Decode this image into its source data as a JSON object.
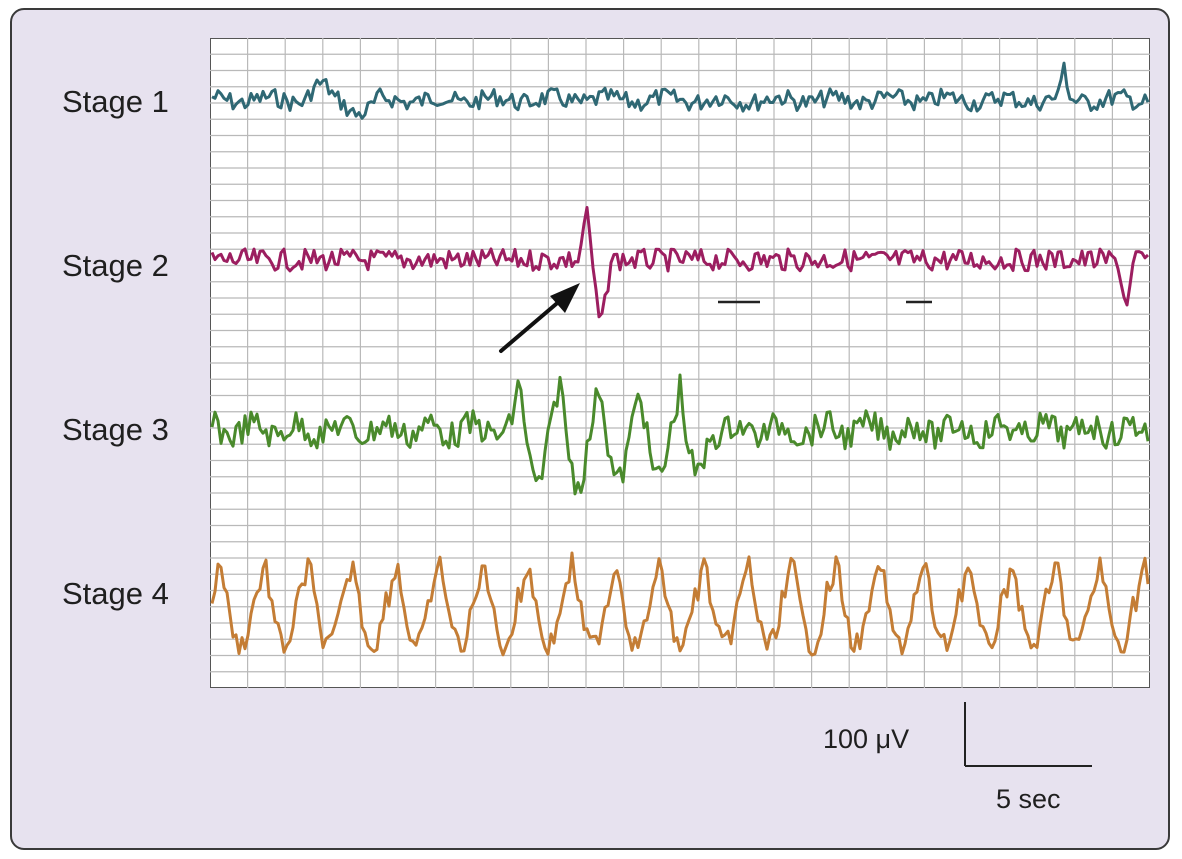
{
  "stages": [
    {
      "label": "Stage 1",
      "color": "#2f6874"
    },
    {
      "label": "Stage 2",
      "color": "#9c1e60"
    },
    {
      "label": "Stage 3",
      "color": "#4a8a2c"
    },
    {
      "label": "Stage 4",
      "color": "#c47d35"
    }
  ],
  "scale_bar": {
    "amplitude_label": "100 μV",
    "time_label": "5 sec"
  },
  "colors": {
    "panel_background": "#e7e2ef",
    "grid_background": "#ffffff",
    "grid_line": "#b9b9b9",
    "arrow": "#111111"
  },
  "icons": [
    "arrow-icon"
  ]
}
